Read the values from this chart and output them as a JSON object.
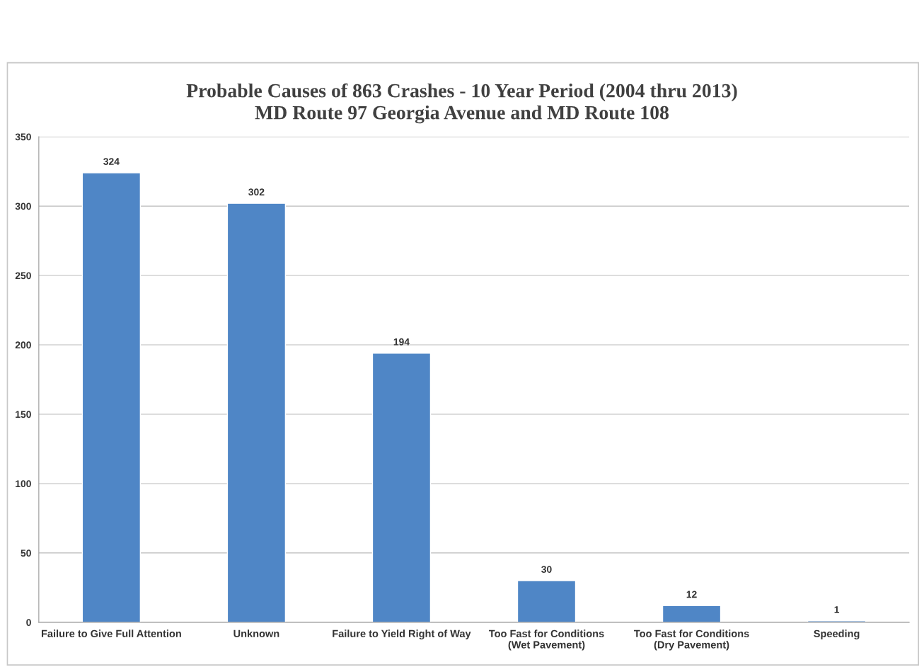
{
  "chart_data": {
    "type": "bar",
    "title": "Probable Causes of 863 Crashes - 10 Year Period (2004 thru 2013)\nMD Route 97 Georgia Avenue and MD Route 108",
    "categories": [
      "Failure to Give Full Attention",
      "Unknown",
      "Failure to Yield Right of Way",
      "Too Fast for Conditions\n(Wet Pavement)",
      "Too Fast for Conditions\n(Dry Pavement)",
      "Speeding"
    ],
    "values": [
      324,
      302,
      194,
      30,
      12,
      1
    ],
    "color": "#4f86c6",
    "ylim": [
      0,
      350
    ],
    "yticks": [
      0,
      50,
      100,
      150,
      200,
      250,
      300,
      350
    ],
    "grid": "y",
    "data_labels": true,
    "legend": false
  }
}
